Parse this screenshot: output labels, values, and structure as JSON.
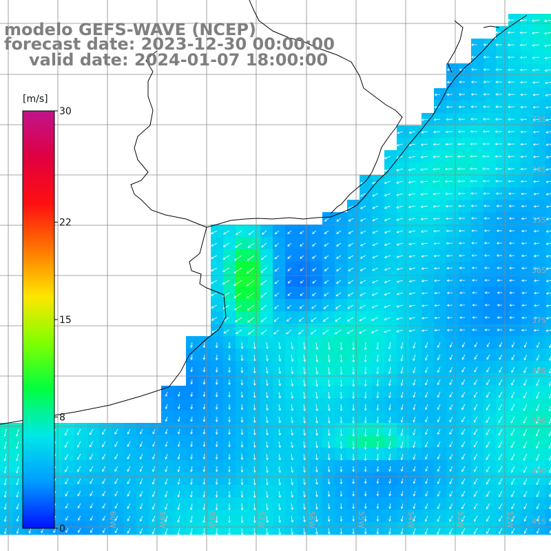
{
  "title": {
    "line1": "modelo GEFS-WAVE (NCEP)",
    "line2": "forecast date: 2023-12-30 00:00:00",
    "line3": "valid date: 2024-01-07 18:00:00"
  },
  "colorbar": {
    "unit": "[m/s]",
    "min": 0,
    "max": 30,
    "ticks": [
      {
        "value": 30,
        "label": "30"
      },
      {
        "value": 22,
        "label": "22"
      },
      {
        "value": 15,
        "label": "15"
      },
      {
        "value": 8,
        "label": "8"
      },
      {
        "value": 0,
        "label": "0"
      }
    ],
    "color_stops": [
      "#0010ff",
      "#009cff",
      "#00e8e8",
      "#00ff40",
      "#80ff00",
      "#ffe600",
      "#ff7800",
      "#ff1010",
      "#e00040",
      "#c0148c"
    ]
  },
  "map_extent": {
    "lon_min": -62.3,
    "lon_max": -51.4,
    "lat_min": -41.2,
    "lat_max": -30.5
  },
  "grid": {
    "lat_labels": [
      "33S",
      "34S",
      "35S",
      "36S",
      "37S",
      "38S",
      "39S",
      "40S",
      "41S"
    ],
    "lon_labels": [
      "60W",
      "59W",
      "58W",
      "57W",
      "56W",
      "55W",
      "54W",
      "53W",
      "52W"
    ]
  },
  "field": {
    "name": "wind speed",
    "unit": "m/s"
  }
}
